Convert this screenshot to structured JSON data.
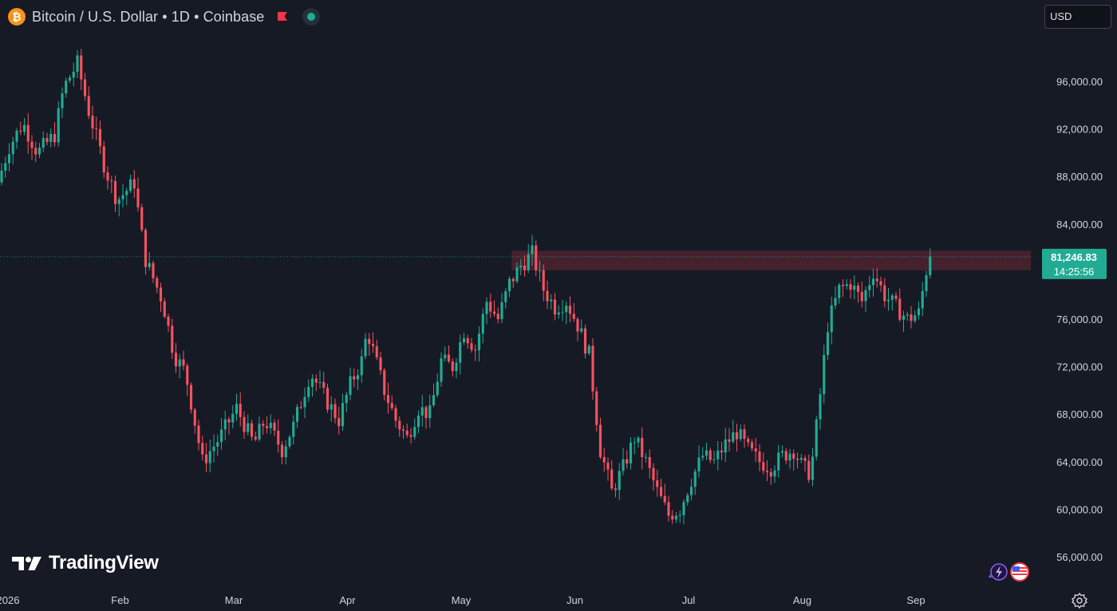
{
  "header": {
    "title": "Bitcoin / U.S. Dollar • 1D • Coinbase",
    "currency": "USD",
    "brand": "TradingView",
    "brand_icon": "tradingview-logo-icon",
    "coin_icon": "bitcoin-icon",
    "coin_glyph": "₿"
  },
  "colors": {
    "background": "#161a25",
    "up": "#22ab94",
    "down": "#f7525f",
    "resistance_zone": "#4a2230",
    "last_price_label": "#22ab94"
  },
  "chart_data": {
    "type": "candlestick",
    "timeframe": "1D",
    "x_tick_labels": [
      "2026",
      "Feb",
      "Mar",
      "Apr",
      "May",
      "Jun",
      "Jul",
      "Aug",
      "Sep"
    ],
    "y_tick_labels": [
      "96,000.00",
      "92,000.00",
      "88,000.00",
      "84,000.00",
      "80,000.00",
      "76,000.00",
      "72,000.00",
      "68,000.00",
      "64,000.00",
      "60,000.00",
      "56,000.00"
    ],
    "y_ticks": [
      96000,
      92000,
      88000,
      84000,
      80000,
      76000,
      72000,
      68000,
      64000,
      60000,
      56000
    ],
    "ylim": [
      54000,
      101500
    ],
    "last_price": 81246.83,
    "last_price_label": "81,246.83",
    "countdown": "14:25:56",
    "resistance_zone": {
      "low": 80100,
      "high": 81750,
      "from_month": 4.5
    },
    "grid": false,
    "anchors": [
      [
        0.0,
        87500
      ],
      [
        0.1,
        90500
      ],
      [
        0.22,
        92500
      ],
      [
        0.35,
        90000
      ],
      [
        0.5,
        91500
      ],
      [
        0.58,
        95500
      ],
      [
        0.7,
        97500
      ],
      [
        0.8,
        93500
      ],
      [
        0.95,
        88500
      ],
      [
        1.05,
        86000
      ],
      [
        1.2,
        87500
      ],
      [
        1.25,
        84000
      ],
      [
        1.3,
        81000
      ],
      [
        1.45,
        77500
      ],
      [
        1.55,
        73000
      ],
      [
        1.65,
        71500
      ],
      [
        1.8,
        64000
      ],
      [
        1.95,
        66000
      ],
      [
        2.1,
        68500
      ],
      [
        2.25,
        65500
      ],
      [
        2.35,
        67500
      ],
      [
        2.5,
        65000
      ],
      [
        2.6,
        67000
      ],
      [
        2.75,
        71500
      ],
      [
        2.9,
        69000
      ],
      [
        3.0,
        67500
      ],
      [
        3.1,
        70500
      ],
      [
        3.2,
        72500
      ],
      [
        3.25,
        75000
      ],
      [
        3.4,
        70000
      ],
      [
        3.5,
        67500
      ],
      [
        3.6,
        66000
      ],
      [
        3.7,
        68500
      ],
      [
        3.8,
        68000
      ],
      [
        3.9,
        72500
      ],
      [
        4.0,
        72000
      ],
      [
        4.1,
        75000
      ],
      [
        4.2,
        73500
      ],
      [
        4.3,
        77500
      ],
      [
        4.4,
        76000
      ],
      [
        4.5,
        79000
      ],
      [
        4.6,
        80500
      ],
      [
        4.7,
        81500
      ],
      [
        4.8,
        78500
      ],
      [
        4.9,
        77000
      ],
      [
        5.0,
        77500
      ],
      [
        5.1,
        75500
      ],
      [
        5.2,
        73000
      ],
      [
        5.3,
        65000
      ],
      [
        5.4,
        61500
      ],
      [
        5.5,
        63500
      ],
      [
        5.6,
        66000
      ],
      [
        5.7,
        64000
      ],
      [
        5.8,
        61500
      ],
      [
        5.9,
        59500
      ],
      [
        6.0,
        60000
      ],
      [
        6.1,
        62500
      ],
      [
        6.2,
        64500
      ],
      [
        6.3,
        64000
      ],
      [
        6.4,
        65500
      ],
      [
        6.5,
        66500
      ],
      [
        6.6,
        65000
      ],
      [
        6.7,
        64000
      ],
      [
        6.8,
        63500
      ],
      [
        6.9,
        64500
      ],
      [
        7.0,
        65000
      ],
      [
        7.08,
        63500
      ],
      [
        7.15,
        63000
      ],
      [
        7.22,
        68500
      ],
      [
        7.3,
        75500
      ],
      [
        7.4,
        78500
      ],
      [
        7.5,
        79000
      ],
      [
        7.6,
        77500
      ],
      [
        7.7,
        80000
      ],
      [
        7.8,
        78000
      ],
      [
        7.9,
        77000
      ],
      [
        8.0,
        76000
      ],
      [
        8.1,
        76500
      ],
      [
        8.18,
        80800
      ]
    ]
  }
}
